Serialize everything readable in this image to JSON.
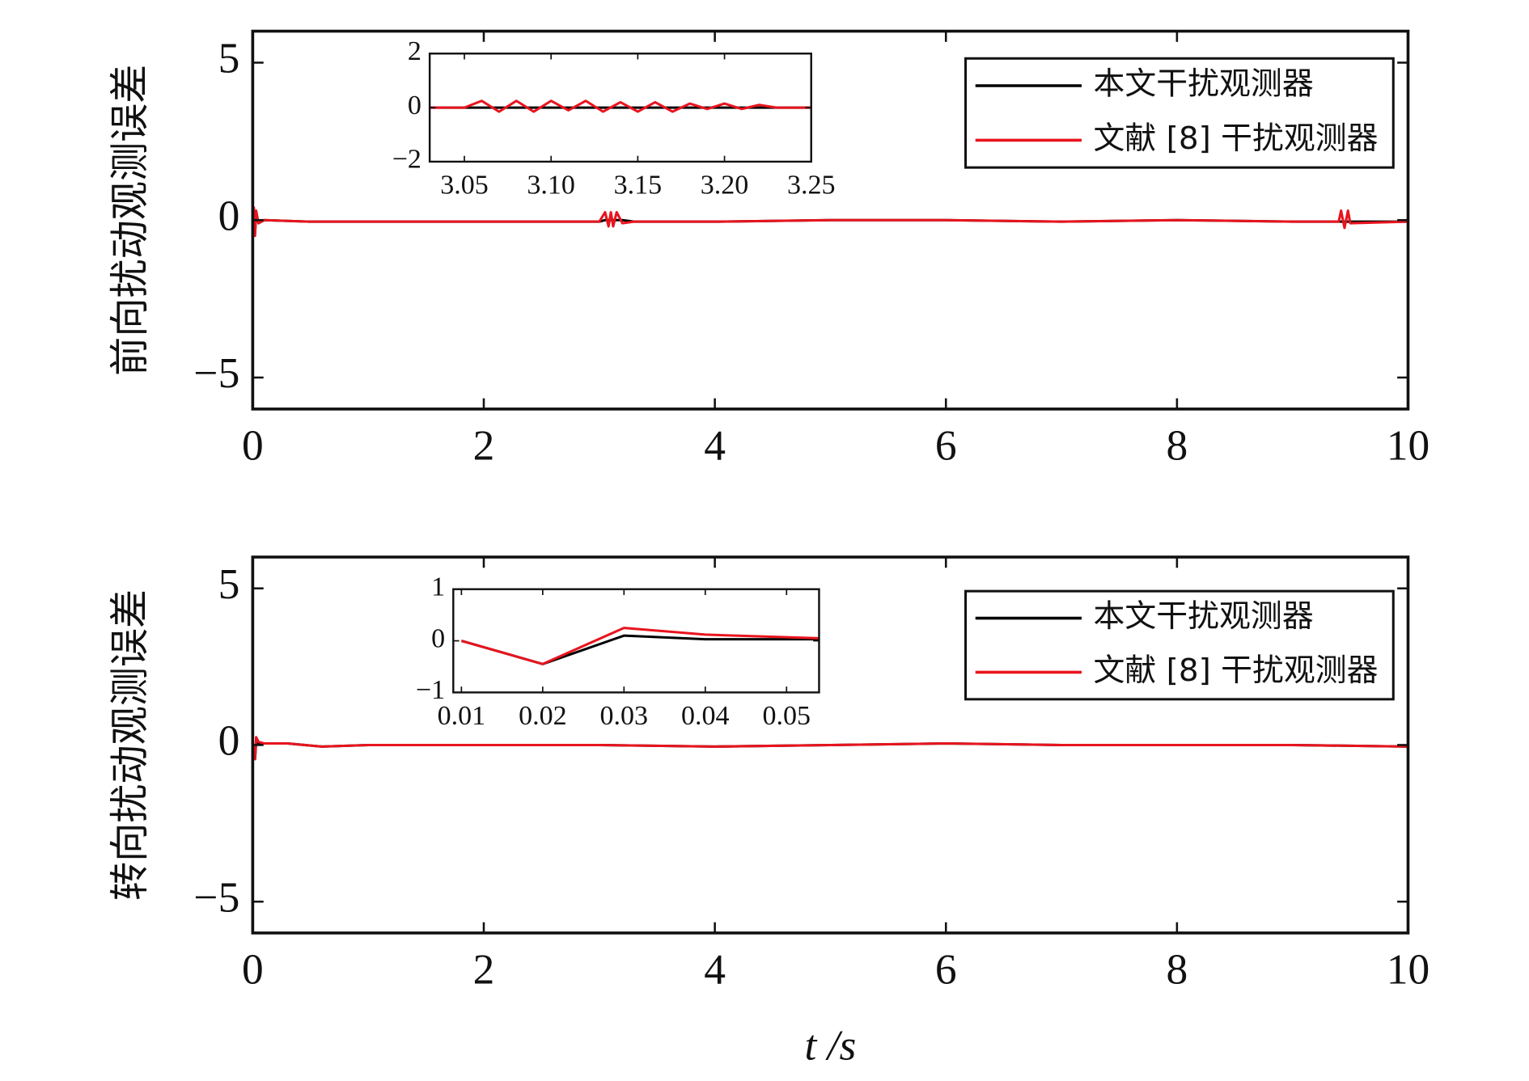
{
  "chart_data": [
    {
      "type": "line",
      "ylabel": "前向扰动观测误差",
      "x": [
        0,
        0.01,
        0.02,
        0.03,
        0.05,
        0.1,
        0.5,
        1,
        2,
        3,
        3.05,
        3.08,
        3.1,
        3.12,
        3.15,
        3.2,
        3.3,
        4,
        5,
        6,
        7,
        8,
        9,
        9.4,
        9.42,
        9.45,
        9.48,
        9.5,
        10
      ],
      "series": [
        {
          "name": "本文干扰观测器",
          "color": "#000000",
          "values": [
            0,
            0.3,
            -0.4,
            0.2,
            -0.1,
            0,
            -0.05,
            -0.05,
            -0.05,
            -0.05,
            0,
            0,
            0,
            0,
            0,
            0,
            -0.05,
            -0.05,
            0,
            0,
            -0.05,
            0,
            -0.05,
            -0.05,
            -0.05,
            -0.05,
            -0.05,
            -0.05,
            -0.05
          ]
        },
        {
          "name": "文献 [8] 干扰观测器",
          "color": "#e8141e",
          "values": [
            0,
            0.4,
            -0.5,
            0.3,
            -0.1,
            0,
            -0.05,
            -0.05,
            -0.05,
            -0.05,
            0.25,
            -0.2,
            0.25,
            -0.2,
            0.25,
            -0.1,
            -0.05,
            -0.05,
            0,
            0,
            -0.05,
            0,
            -0.05,
            -0.05,
            0.3,
            -0.25,
            0.3,
            -0.1,
            -0.05
          ]
        }
      ],
      "xlim": [
        0,
        10
      ],
      "xticks": [
        0,
        2,
        4,
        6,
        8,
        10
      ],
      "ylim": [
        -6,
        6
      ],
      "yticks": [
        {
          "value": -5,
          "label": "−5"
        },
        0,
        5
      ],
      "legend": "upper right"
    },
    {
      "type": "line",
      "ylabel": "转向扰动观测误差",
      "xlabel": "t /s",
      "x": [
        0,
        0.01,
        0.02,
        0.03,
        0.05,
        0.1,
        0.3,
        0.6,
        1,
        2,
        3,
        4,
        5,
        6,
        7,
        8,
        9,
        10
      ],
      "series": [
        {
          "name": "本文干扰观测器",
          "color": "#000000",
          "values": [
            0,
            0,
            -0.45,
            0.1,
            0.03,
            0.05,
            0.05,
            -0.05,
            0,
            0,
            0,
            -0.05,
            0,
            0.05,
            0,
            0,
            0,
            -0.05
          ]
        },
        {
          "name": "文献 [8] 干扰观测器",
          "color": "#e8141e",
          "values": [
            0,
            0,
            -0.45,
            0.25,
            0.1,
            0.05,
            0.05,
            -0.05,
            0,
            0,
            0,
            -0.05,
            0,
            0.05,
            0,
            0,
            0,
            -0.05
          ]
        }
      ],
      "xlim": [
        0,
        10
      ],
      "xticks": [
        0,
        2,
        4,
        6,
        8,
        10
      ],
      "ylim": [
        -6,
        6
      ],
      "yticks": [
        {
          "value": -5,
          "label": "−5"
        },
        0,
        5
      ],
      "legend": "upper right"
    },
    {
      "type": "line",
      "x": [
        3.03,
        3.04,
        3.05,
        3.06,
        3.07,
        3.08,
        3.09,
        3.1,
        3.11,
        3.12,
        3.13,
        3.14,
        3.15,
        3.16,
        3.17,
        3.18,
        3.19,
        3.2,
        3.21,
        3.22,
        3.23,
        3.24,
        3.25
      ],
      "series": [
        {
          "color": "#000000",
          "values": [
            0,
            0,
            0,
            0,
            0,
            0,
            0,
            0,
            0,
            0,
            0,
            0,
            0,
            0,
            0,
            0,
            0,
            0,
            0,
            0,
            0,
            0,
            0
          ]
        },
        {
          "color": "#e8141e",
          "values": [
            0,
            0,
            0,
            0.25,
            -0.15,
            0.25,
            -0.15,
            0.25,
            -0.1,
            0.25,
            -0.15,
            0.2,
            -0.15,
            0.2,
            -0.15,
            0.15,
            -0.05,
            0.15,
            -0.05,
            0.1,
            0,
            0,
            0
          ]
        }
      ],
      "xlim": [
        3.03,
        3.25
      ],
      "xticks": [
        3.05,
        {
          "value": 3.1,
          "label": "3.10"
        },
        3.15,
        {
          "value": 3.2,
          "label": "3.20"
        },
        3.25
      ],
      "ylim": [
        -2,
        2
      ],
      "yticks": [
        {
          "value": -2,
          "label": "−2"
        },
        0,
        2
      ]
    },
    {
      "type": "line",
      "x": [
        0.01,
        0.02,
        0.03,
        0.04,
        0.054
      ],
      "series": [
        {
          "color": "#000000",
          "values": [
            0,
            -0.45,
            0.1,
            0.03,
            0.03
          ]
        },
        {
          "color": "#e8141e",
          "values": [
            0,
            -0.45,
            0.25,
            0.12,
            0.05
          ]
        }
      ],
      "xlim": [
        0.009,
        0.054
      ],
      "xticks": [
        0.01,
        0.02,
        0.03,
        0.04,
        0.05
      ],
      "ylim": [
        -1,
        1
      ],
      "yticks": [
        {
          "value": -1,
          "label": "−1"
        },
        0,
        1
      ]
    }
  ]
}
